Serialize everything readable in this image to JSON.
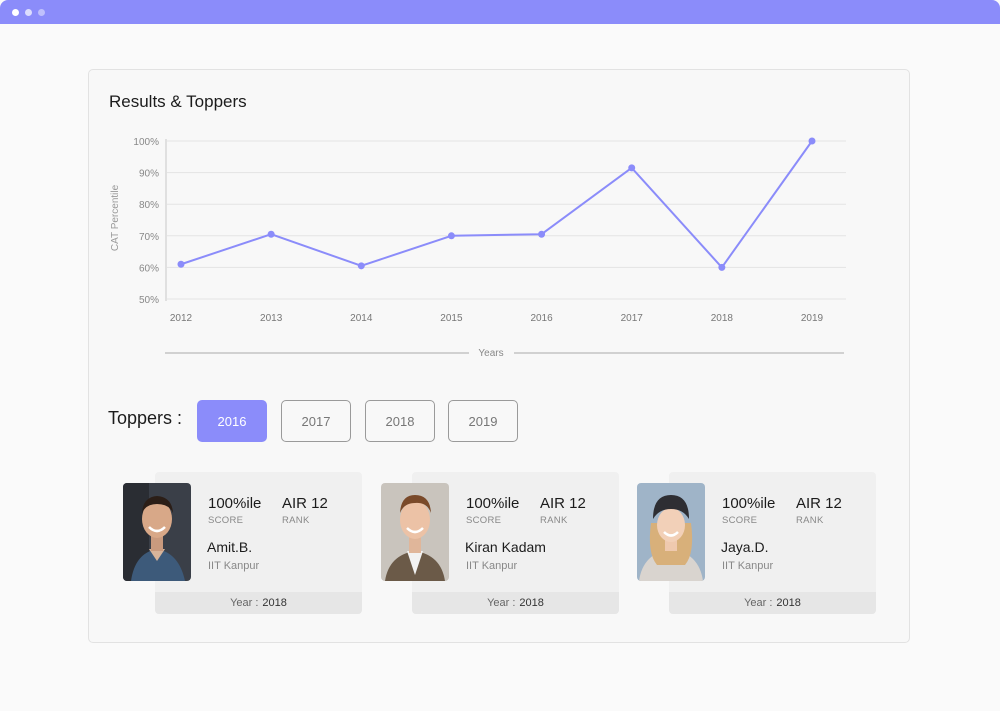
{
  "window": {
    "accent": "#8b8cfa"
  },
  "panel": {
    "title": "Results & Toppers"
  },
  "chart_data": {
    "type": "line",
    "ylabel": "CAT Percentile",
    "xlabel": "Years",
    "y_ticks": [
      "100%",
      "90%",
      "80%",
      "70%",
      "60%",
      "50%"
    ],
    "ylim": [
      50,
      100
    ],
    "x": [
      "2012",
      "2013",
      "2014",
      "2015",
      "2016",
      "2017",
      "2018",
      "2019"
    ],
    "series": [
      {
        "values": [
          61,
          70.5,
          60.5,
          70,
          70.5,
          91.5,
          60,
          100
        ]
      }
    ],
    "line_color": "#8b8cfa",
    "grid": true
  },
  "toppers": {
    "label": "Toppers :",
    "tabs": [
      {
        "label": "2016",
        "active": true
      },
      {
        "label": "2017",
        "active": false
      },
      {
        "label": "2018",
        "active": false
      },
      {
        "label": "2019",
        "active": false
      }
    ],
    "cards": [
      {
        "score": "100%ile",
        "score_label": "SCORE",
        "rank": "AIR 12",
        "rank_label": "RANK",
        "name": "Amit.B.",
        "institute": "IIT Kanpur",
        "year_label": "Year :",
        "year": "2018"
      },
      {
        "score": "100%ile",
        "score_label": "SCORE",
        "rank": "AIR 12",
        "rank_label": "RANK",
        "name": "Kiran Kadam",
        "institute": "IIT Kanpur",
        "year_label": "Year :",
        "year": "2018"
      },
      {
        "score": "100%ile",
        "score_label": "SCORE",
        "rank": "AIR 12",
        "rank_label": "RANK",
        "name": "Jaya.D.",
        "institute": "IIT Kanpur",
        "year_label": "Year :",
        "year": "2018"
      }
    ]
  }
}
